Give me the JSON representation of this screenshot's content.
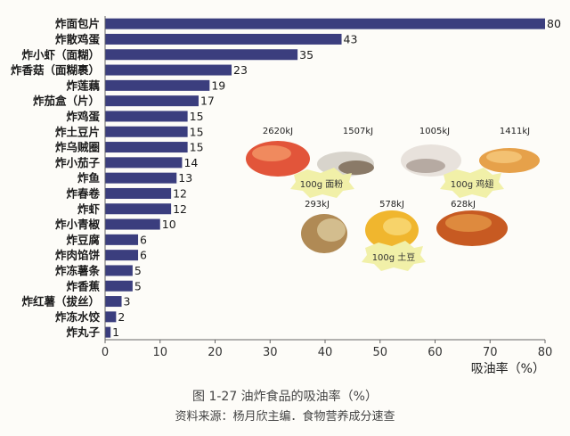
{
  "chart_data": {
    "type": "bar",
    "orientation": "horizontal",
    "categories": [
      "炸面包片",
      "炸散鸡蛋",
      "炸小虾（面糊）",
      "炸香菇（面糊裹）",
      "炸莲藕",
      "炸茄盒（片）",
      "炸鸡蛋",
      "炸土豆片",
      "炸乌贼圈",
      "炸小茄子",
      "炸鱼",
      "炸春卷",
      "炸虾",
      "炸小青椒",
      "炸豆腐",
      "炸肉馅饼",
      "炸冻薯条",
      "炸香蕉",
      "炸红薯（拔丝）",
      "炸冻水饺",
      "炸丸子"
    ],
    "values": [
      80,
      43,
      35,
      23,
      19,
      17,
      15,
      15,
      15,
      14,
      13,
      12,
      12,
      10,
      6,
      6,
      5,
      5,
      3,
      2,
      1
    ],
    "xlabel": "吸油率（%）",
    "xlim": [
      0,
      80
    ],
    "xticks": [
      0,
      10,
      20,
      30,
      40,
      50,
      60,
      70,
      80
    ],
    "bar_color": "#3b3e7e",
    "grid": false
  },
  "caption": {
    "title": "图 1-27    油炸食品的吸油率（%）",
    "source": "资料来源：杨月欣主编．食物营养成分速查"
  },
  "inset": {
    "kj_labels": [
      "2620kJ",
      "1507kJ",
      "1005kJ",
      "1411kJ",
      "293kJ",
      "578kJ",
      "628kJ"
    ],
    "tags": [
      "100g 面粉",
      "100g 鸡翅",
      "100g 土豆"
    ]
  }
}
